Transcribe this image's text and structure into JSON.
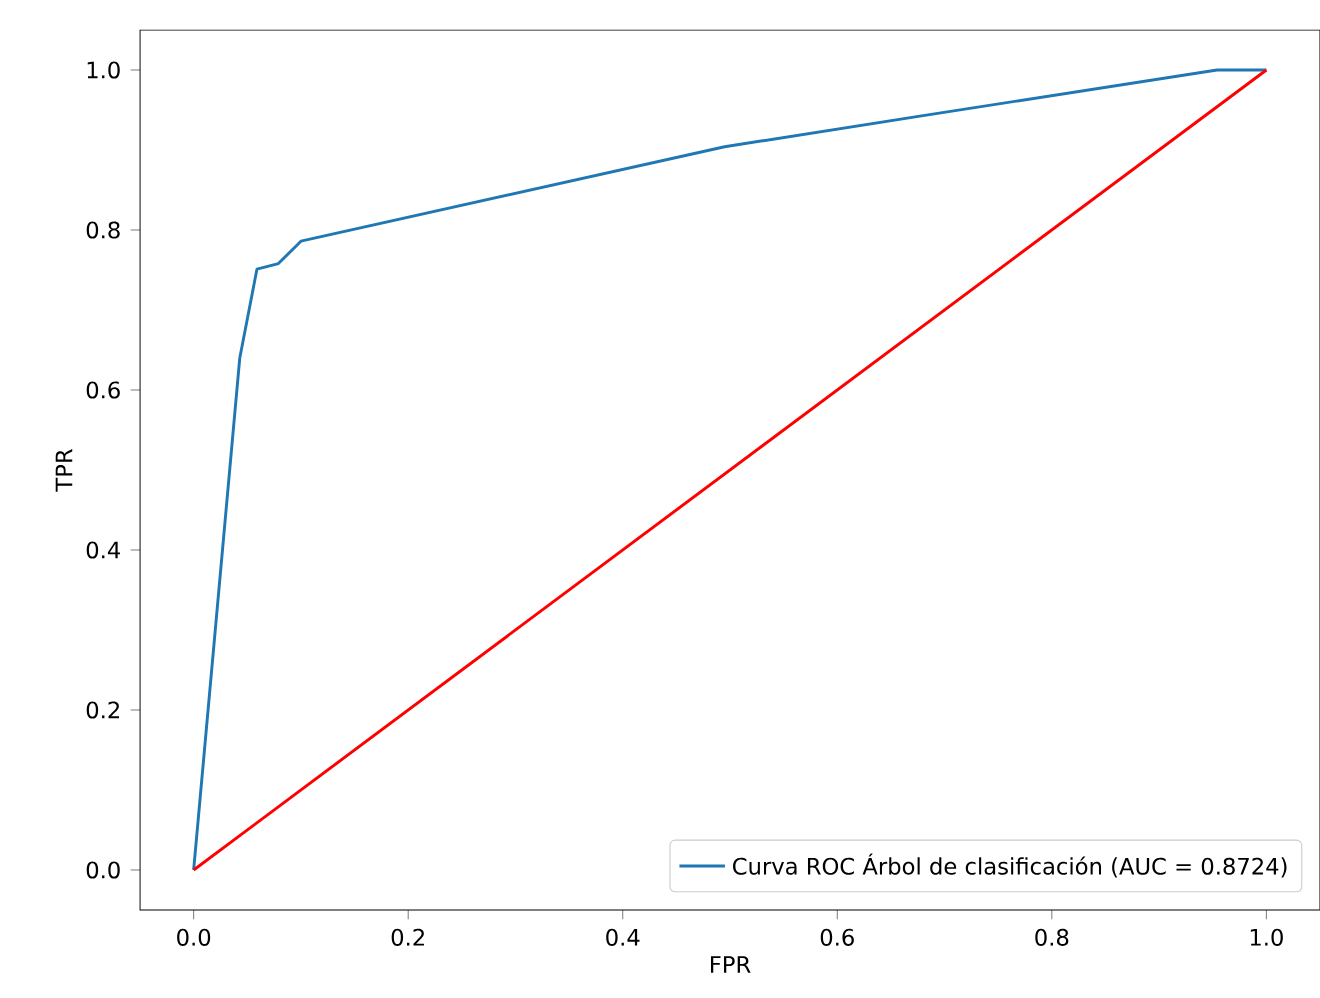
{
  "chart_data": {
    "type": "line",
    "xlabel": "FPR",
    "ylabel": "TPR",
    "xlim": [
      -0.05,
      1.05
    ],
    "ylim": [
      -0.05,
      1.05
    ],
    "xticks": [
      {
        "value": 0,
        "label": "0.0"
      },
      {
        "value": 0.2,
        "label": "0.2"
      },
      {
        "value": 0.4,
        "label": "0.4"
      },
      {
        "value": 0.6,
        "label": "0.6"
      },
      {
        "value": 0.8,
        "label": "0.8"
      },
      {
        "value": 1,
        "label": "1.0"
      }
    ],
    "yticks": [
      {
        "value": 0,
        "label": "0.0"
      },
      {
        "value": 0.2,
        "label": "0.2"
      },
      {
        "value": 0.4,
        "label": "0.4"
      },
      {
        "value": 0.6,
        "label": "0.6"
      },
      {
        "value": 0.8,
        "label": "0.8"
      },
      {
        "value": 1,
        "label": "1.0"
      }
    ],
    "legend": "bottom right",
    "grid": false,
    "series": [
      {
        "name": "Curva ROC Árbol de clasificación (AUC = 0.8724)",
        "color": "#1f77b4",
        "x": [
          0,
          0.043,
          0.059,
          0.079,
          0.1,
          0.495,
          0.68,
          0.954,
          1
        ],
        "values": [
          0,
          0.64,
          0.751,
          0.758,
          0.786,
          0.904,
          0.943,
          1,
          1
        ]
      },
      {
        "color": "#ff0000",
        "x": [
          0,
          1
        ],
        "values": [
          0,
          1
        ]
      }
    ]
  }
}
